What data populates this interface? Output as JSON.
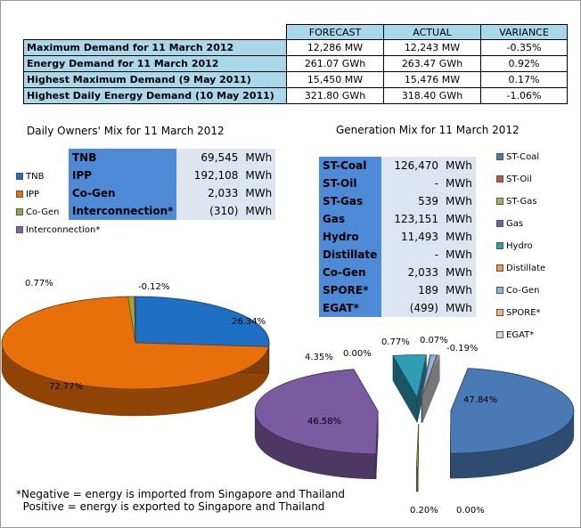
{
  "summary": {
    "headers": [
      "FORECAST",
      "ACTUAL",
      "VARIANCE"
    ],
    "rows": [
      {
        "label": "Maximum Demand for 11 March 2012",
        "forecast": "12,286  MW",
        "actual": "12,243  MW",
        "variance": "-0.35%"
      },
      {
        "label": "Energy Demand for 11 March 2012",
        "forecast": "261.07  GWh",
        "actual": "263.47  GWh",
        "variance": "0.92%"
      },
      {
        "label": "Highest Maximum Demand (9 May 2011)",
        "forecast": "15,450  MW",
        "actual": "15,476  MW",
        "variance": "0.17%"
      },
      {
        "label": "Highest Daily Energy Demand (10 May 2011)",
        "forecast": "321.80  GWh",
        "actual": "318.40  GWh",
        "variance": "-1.06%"
      }
    ]
  },
  "owners": {
    "title": "Daily Owners' Mix for 11 March 2012",
    "unit": "MWh",
    "rows": [
      {
        "name": "TNB",
        "value": "69,545"
      },
      {
        "name": "IPP",
        "value": "192,108"
      },
      {
        "name": "Co-Gen",
        "value": "2,033"
      },
      {
        "name": "Interconnection*",
        "value": "(310)"
      }
    ]
  },
  "generation": {
    "title": "Generation Mix for 11 March 2012",
    "unit": "MWh",
    "rows": [
      {
        "name": "ST-Coal",
        "value": "126,470"
      },
      {
        "name": "ST-Oil",
        "value": "-"
      },
      {
        "name": "ST-Gas",
        "value": "539"
      },
      {
        "name": "Gas",
        "value": "123,151"
      },
      {
        "name": "Hydro",
        "value": "11,493"
      },
      {
        "name": "Distillate",
        "value": "-"
      },
      {
        "name": "Co-Gen",
        "value": "2,033"
      },
      {
        "name": "SPORE*",
        "value": "189"
      },
      {
        "name": "EGAT*",
        "value": "(499)"
      }
    ]
  },
  "note": "*Negative = energy is imported from Singapore and Thailand\n  Positive = energy is exported to Singapore and Thailand",
  "chart_data": [
    {
      "type": "pie",
      "title": "Daily Owners' Mix for 11 March 2012",
      "legend": "left",
      "slices": [
        {
          "name": "TNB",
          "value": 26.34,
          "label": "26.34%",
          "color": "#1f6fc5"
        },
        {
          "name": "IPP",
          "value": 72.77,
          "label": "72.77%",
          "color": "#e8700a"
        },
        {
          "name": "Co-Gen",
          "value": 0.77,
          "label": "0.77%",
          "color": "#9aa83a"
        },
        {
          "name": "Interconnection*",
          "value": 0.12,
          "label": "-0.12%",
          "color": "#8e5ea8"
        }
      ]
    },
    {
      "type": "pie",
      "title": "Generation Mix for 11 March 2012",
      "legend": "right",
      "slices": [
        {
          "name": "ST-Coal",
          "value": 47.84,
          "label": "47.84%",
          "color": "#4a7ab6"
        },
        {
          "name": "ST-Oil",
          "value": 0.0,
          "label": "0.00%",
          "color": "#c0504d"
        },
        {
          "name": "ST-Gas",
          "value": 0.2,
          "label": "0.20%",
          "color": "#9bbb59"
        },
        {
          "name": "Gas",
          "value": 46.58,
          "label": "46.58%",
          "color": "#7a5aa0"
        },
        {
          "name": "Hydro",
          "value": 4.35,
          "label": "4.35%",
          "color": "#2f9db5"
        },
        {
          "name": "Distillate",
          "value": 0.0,
          "label": "0.00%",
          "color": "#f79646"
        },
        {
          "name": "Co-Gen",
          "value": 0.77,
          "label": "0.77%",
          "color": "#8fb4e3"
        },
        {
          "name": "SPORE*",
          "value": 0.07,
          "label": "0.07%",
          "color": "#f4b183"
        },
        {
          "name": "EGAT*",
          "value": 0.19,
          "label": "-0.19%",
          "color": "#d9d9d9"
        }
      ]
    }
  ]
}
